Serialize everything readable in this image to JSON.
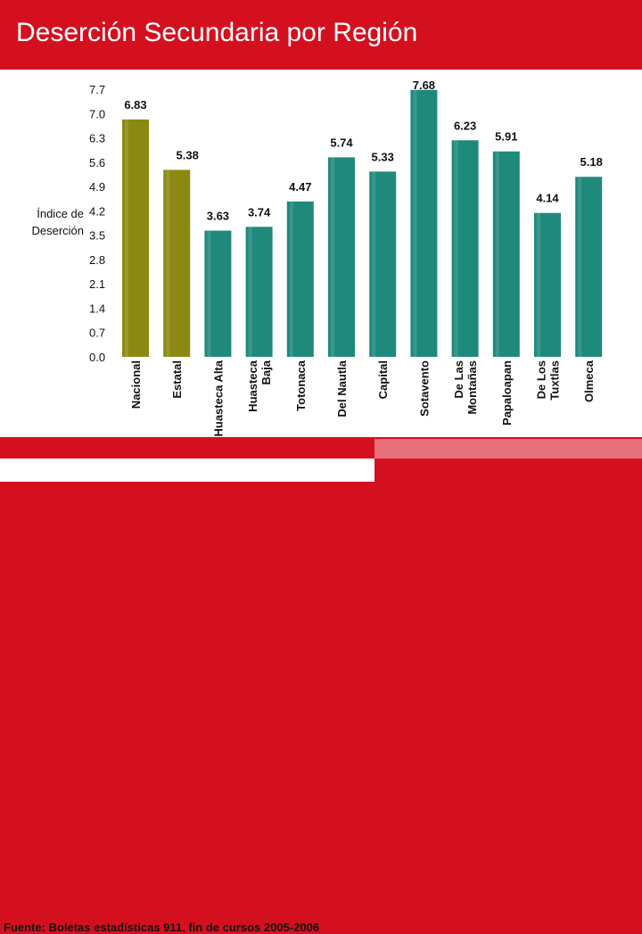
{
  "header": {
    "title": "Deserción Secundaria por Región"
  },
  "footer": {
    "source": "Fuente: Boletas estadísticas 911, fin de cursos 2005-2006"
  },
  "colors": {
    "brand_red": "#d4101f",
    "olive": "#8a8a10",
    "teal": "#1f8a7c"
  },
  "chart_data": {
    "type": "bar",
    "title": "Deserción Secundaria por Región",
    "ylabel": "Índice de Deserción",
    "ylabel_lines": [
      "Índice de",
      "Deserción"
    ],
    "xlabel": "",
    "ylim": [
      0,
      7.7
    ],
    "yticks": [
      "0.0",
      "0.7",
      "1.4",
      "2.1",
      "2.8",
      "3.5",
      "4.2",
      "4.9",
      "5.6",
      "6.3",
      "7.0",
      "7.7"
    ],
    "categories": [
      [
        "Nacional"
      ],
      [
        "Estatal"
      ],
      [
        "Huasteca Alta"
      ],
      [
        "Huasteca",
        "Baja"
      ],
      [
        "Totonaca"
      ],
      [
        "Del Nautla"
      ],
      [
        "Capital"
      ],
      [
        "Sotavento"
      ],
      [
        "De Las",
        "Montañas"
      ],
      [
        "Papaloapan"
      ],
      [
        "De Los",
        "Tuxtlas"
      ],
      [
        "Olmeca"
      ]
    ],
    "values": [
      6.83,
      5.38,
      3.63,
      3.74,
      4.47,
      5.74,
      5.33,
      7.68,
      6.23,
      5.91,
      4.14,
      5.18
    ],
    "value_labels": [
      "6.83",
      "5.38",
      "3.63",
      "3.74",
      "4.47",
      "5.74",
      "5.33",
      "7.68",
      "6.23",
      "5.91",
      "4.14",
      "5.18"
    ],
    "bar_colors": [
      "olive",
      "olive",
      "teal",
      "teal",
      "teal",
      "teal",
      "teal",
      "teal",
      "teal",
      "teal",
      "teal",
      "teal"
    ],
    "grid": false,
    "legend": "none"
  }
}
